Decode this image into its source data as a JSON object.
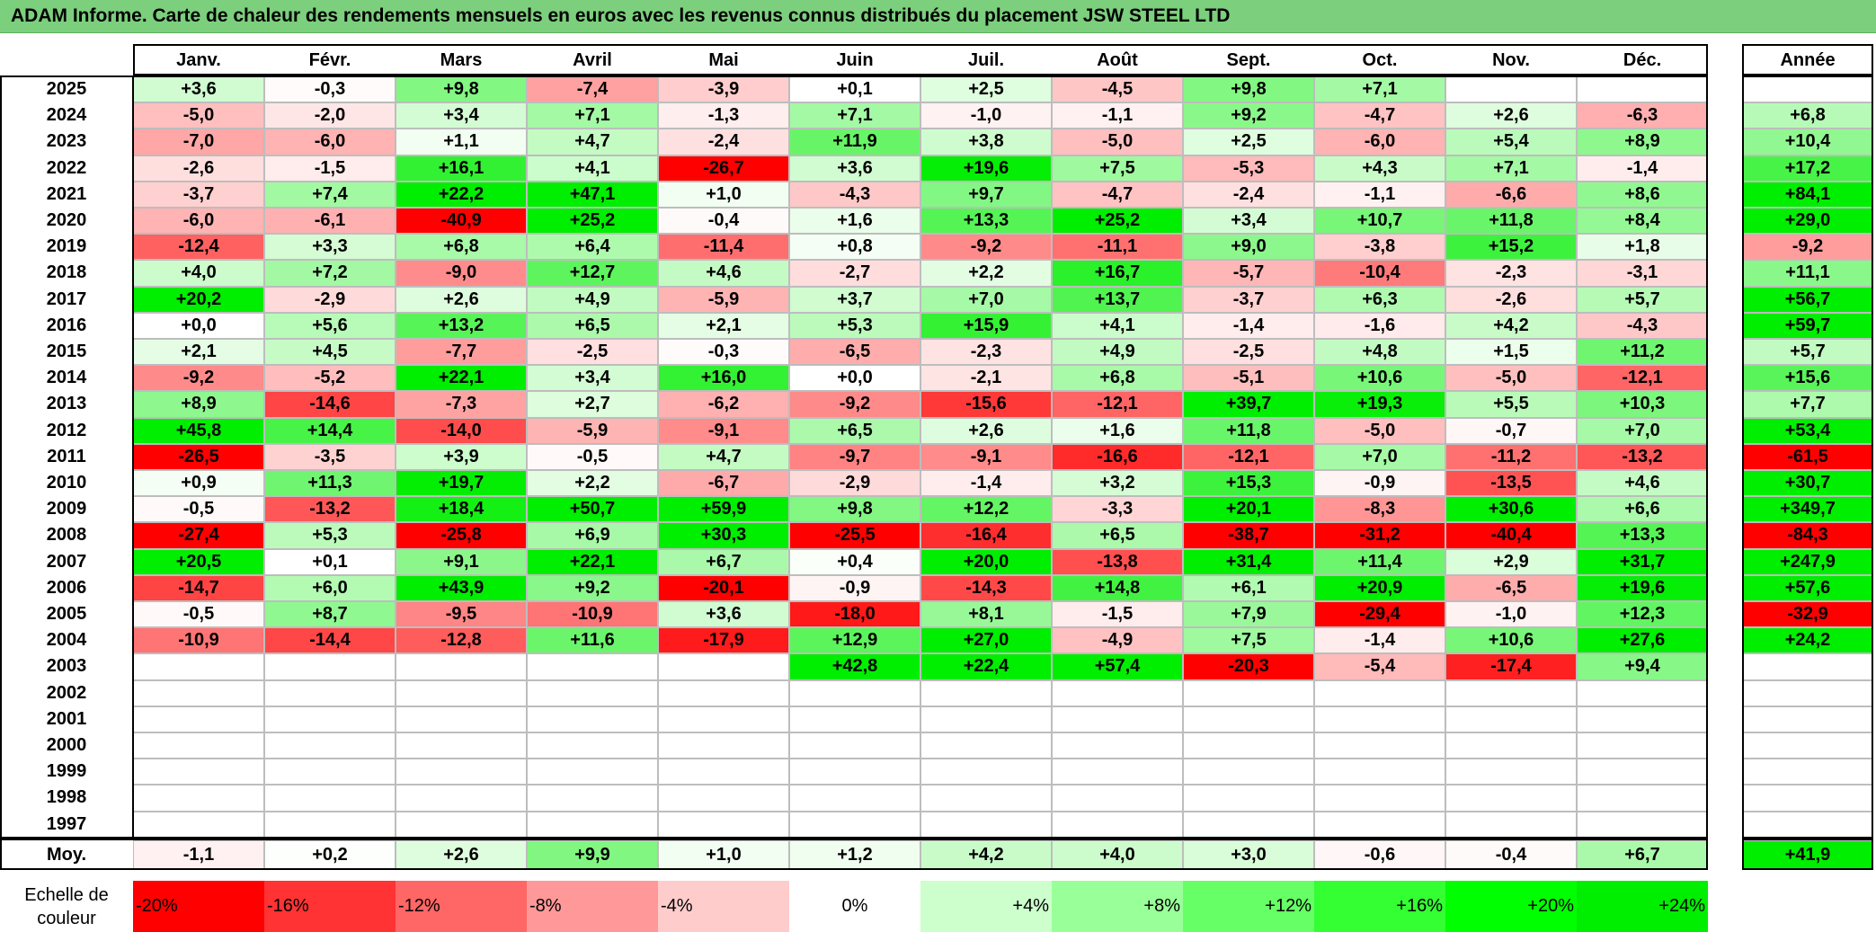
{
  "title": "ADAM Informe. Carte de chaleur des rendements mensuels en euros avec les revenus connus distribués du placement JSW STEEL LTD",
  "months": [
    "Janv.",
    "Févr.",
    "Mars",
    "Avril",
    "Mai",
    "Juin",
    "Juil.",
    "Août",
    "Sept.",
    "Oct.",
    "Nov.",
    "Déc."
  ],
  "year_header": "Année",
  "avg_label": "Moy.",
  "scale_label": "Echelle de couleur",
  "scale_steps": [
    {
      "label": "-20%",
      "value": -20,
      "color": "#ff0000",
      "align": "left"
    },
    {
      "label": "-16%",
      "value": -16,
      "color": "#ff3333",
      "align": "left"
    },
    {
      "label": "-12%",
      "value": -12,
      "color": "#ff6666",
      "align": "left"
    },
    {
      "label": "-8%",
      "value": -8,
      "color": "#ff9999",
      "align": "left"
    },
    {
      "label": "-4%",
      "value": -4,
      "color": "#ffcccc",
      "align": "left"
    },
    {
      "label": "0%",
      "value": 0,
      "color": "#ffffff",
      "align": "center"
    },
    {
      "label": "+4%",
      "value": 4,
      "color": "#ccffcc",
      "align": "right"
    },
    {
      "label": "+8%",
      "value": 8,
      "color": "#99ff99",
      "align": "right"
    },
    {
      "label": "+12%",
      "value": 12,
      "color": "#66ff66",
      "align": "right"
    },
    {
      "label": "+16%",
      "value": 16,
      "color": "#33ff33",
      "align": "right"
    },
    {
      "label": "+20%",
      "value": 20,
      "color": "#00ff00",
      "align": "right"
    },
    {
      "label": "+24%",
      "value": 24,
      "color": "#00ee00",
      "align": "right"
    }
  ],
  "chart_data": {
    "type": "heatmap",
    "title": "ADAM Informe. Carte de chaleur des rendements mensuels en euros avec les revenus connus distribués du placement JSW STEEL LTD",
    "x": [
      "Janv.",
      "Févr.",
      "Mars",
      "Avril",
      "Mai",
      "Juin",
      "Juil.",
      "Août",
      "Sept.",
      "Oct.",
      "Nov.",
      "Déc."
    ],
    "rows": [
      {
        "year": "2025",
        "values": [
          "+3,6",
          "-0,3",
          "+9,8",
          "-7,4",
          "-3,9",
          "+0,1",
          "+2,5",
          "-4,5",
          "+9,8",
          "+7,1",
          "",
          ""
        ],
        "annual": ""
      },
      {
        "year": "2024",
        "values": [
          "-5,0",
          "-2,0",
          "+3,4",
          "+7,1",
          "-1,3",
          "+7,1",
          "-1,0",
          "-1,1",
          "+9,2",
          "-4,7",
          "+2,6",
          "-6,3"
        ],
        "annual": "+6,8"
      },
      {
        "year": "2023",
        "values": [
          "-7,0",
          "-6,0",
          "+1,1",
          "+4,7",
          "-2,4",
          "+11,9",
          "+3,8",
          "-5,0",
          "+2,5",
          "-6,0",
          "+5,4",
          "+8,9"
        ],
        "annual": "+10,4"
      },
      {
        "year": "2022",
        "values": [
          "-2,6",
          "-1,5",
          "+16,1",
          "+4,1",
          "-26,7",
          "+3,6",
          "+19,6",
          "+7,5",
          "-5,3",
          "+4,3",
          "+7,1",
          "-1,4"
        ],
        "annual": "+17,2"
      },
      {
        "year": "2021",
        "values": [
          "-3,7",
          "+7,4",
          "+22,2",
          "+47,1",
          "+1,0",
          "-4,3",
          "+9,7",
          "-4,7",
          "-2,4",
          "-1,1",
          "-6,6",
          "+8,6"
        ],
        "annual": "+84,1"
      },
      {
        "year": "2020",
        "values": [
          "-6,0",
          "-6,1",
          "-40,9",
          "+25,2",
          "-0,4",
          "+1,6",
          "+13,3",
          "+25,2",
          "+3,4",
          "+10,7",
          "+11,8",
          "+8,4"
        ],
        "annual": "+29,0"
      },
      {
        "year": "2019",
        "values": [
          "-12,4",
          "+3,3",
          "+6,8",
          "+6,4",
          "-11,4",
          "+0,8",
          "-9,2",
          "-11,1",
          "+9,0",
          "-3,8",
          "+15,2",
          "+1,8"
        ],
        "annual": "-9,2"
      },
      {
        "year": "2018",
        "values": [
          "+4,0",
          "+7,2",
          "-9,0",
          "+12,7",
          "+4,6",
          "-2,7",
          "+2,2",
          "+16,7",
          "-5,7",
          "-10,4",
          "-2,3",
          "-3,1"
        ],
        "annual": "+11,1"
      },
      {
        "year": "2017",
        "values": [
          "+20,2",
          "-2,9",
          "+2,6",
          "+4,9",
          "-5,9",
          "+3,7",
          "+7,0",
          "+13,7",
          "-3,7",
          "+6,3",
          "-2,6",
          "+5,7"
        ],
        "annual": "+56,7"
      },
      {
        "year": "2016",
        "values": [
          "+0,0",
          "+5,6",
          "+13,2",
          "+6,5",
          "+2,1",
          "+5,3",
          "+15,9",
          "+4,1",
          "-1,4",
          "-1,6",
          "+4,2",
          "-4,3"
        ],
        "annual": "+59,7"
      },
      {
        "year": "2015",
        "values": [
          "+2,1",
          "+4,5",
          "-7,7",
          "-2,5",
          "-0,3",
          "-6,5",
          "-2,3",
          "+4,9",
          "-2,5",
          "+4,8",
          "+1,5",
          "+11,2"
        ],
        "annual": "+5,7"
      },
      {
        "year": "2014",
        "values": [
          "-9,2",
          "-5,2",
          "+22,1",
          "+3,4",
          "+16,0",
          "+0,0",
          "-2,1",
          "+6,8",
          "-5,1",
          "+10,6",
          "-5,0",
          "-12,1"
        ],
        "annual": "+15,6"
      },
      {
        "year": "2013",
        "values": [
          "+8,9",
          "-14,6",
          "-7,3",
          "+2,7",
          "-6,2",
          "-9,2",
          "-15,6",
          "-12,1",
          "+39,7",
          "+19,3",
          "+5,5",
          "+10,3"
        ],
        "annual": "+7,7"
      },
      {
        "year": "2012",
        "values": [
          "+45,8",
          "+14,4",
          "-14,0",
          "-5,9",
          "-9,1",
          "+6,5",
          "+2,6",
          "+1,6",
          "+11,8",
          "-5,0",
          "-0,7",
          "+7,0"
        ],
        "annual": "+53,4"
      },
      {
        "year": "2011",
        "values": [
          "-26,5",
          "-3,5",
          "+3,9",
          "-0,5",
          "+4,7",
          "-9,7",
          "-9,1",
          "-16,6",
          "-12,1",
          "+7,0",
          "-11,2",
          "-13,2"
        ],
        "annual": "-61,5"
      },
      {
        "year": "2010",
        "values": [
          "+0,9",
          "+11,3",
          "+19,7",
          "+2,2",
          "-6,7",
          "-2,9",
          "-1,4",
          "+3,2",
          "+15,3",
          "-0,9",
          "-13,5",
          "+4,6"
        ],
        "annual": "+30,7"
      },
      {
        "year": "2009",
        "values": [
          "-0,5",
          "-13,2",
          "+18,4",
          "+50,7",
          "+59,9",
          "+9,8",
          "+12,2",
          "-3,3",
          "+20,1",
          "-8,3",
          "+30,6",
          "+6,6"
        ],
        "annual": "+349,7"
      },
      {
        "year": "2008",
        "values": [
          "-27,4",
          "+5,3",
          "-25,8",
          "+6,9",
          "+30,3",
          "-25,5",
          "-16,4",
          "+6,5",
          "-38,7",
          "-31,2",
          "-40,4",
          "+13,3"
        ],
        "annual": "-84,3"
      },
      {
        "year": "2007",
        "values": [
          "+20,5",
          "+0,1",
          "+9,1",
          "+22,1",
          "+6,7",
          "+0,4",
          "+20,0",
          "-13,8",
          "+31,4",
          "+11,4",
          "+2,9",
          "+31,7"
        ],
        "annual": "+247,9"
      },
      {
        "year": "2006",
        "values": [
          "-14,7",
          "+6,0",
          "+43,9",
          "+9,2",
          "-20,1",
          "-0,9",
          "-14,3",
          "+14,8",
          "+6,1",
          "+20,9",
          "-6,5",
          "+19,6"
        ],
        "annual": "+57,6"
      },
      {
        "year": "2005",
        "values": [
          "-0,5",
          "+8,7",
          "-9,5",
          "-10,9",
          "+3,6",
          "-18,0",
          "+8,1",
          "-1,5",
          "+7,9",
          "-29,4",
          "-1,0",
          "+12,3"
        ],
        "annual": "-32,9"
      },
      {
        "year": "2004",
        "values": [
          "-10,9",
          "-14,4",
          "-12,8",
          "+11,6",
          "-17,9",
          "+12,9",
          "+27,0",
          "-4,9",
          "+7,5",
          "-1,4",
          "+10,6",
          "+27,6"
        ],
        "annual": "+24,2"
      },
      {
        "year": "2003",
        "values": [
          "",
          "",
          "",
          "",
          "",
          "+42,8",
          "+22,4",
          "+57,4",
          "-20,3",
          "-5,4",
          "-17,4",
          "+9,4"
        ],
        "annual": ""
      },
      {
        "year": "2002",
        "values": [
          "",
          "",
          "",
          "",
          "",
          "",
          "",
          "",
          "",
          "",
          "",
          ""
        ],
        "annual": ""
      },
      {
        "year": "2001",
        "values": [
          "",
          "",
          "",
          "",
          "",
          "",
          "",
          "",
          "",
          "",
          "",
          ""
        ],
        "annual": ""
      },
      {
        "year": "2000",
        "values": [
          "",
          "",
          "",
          "",
          "",
          "",
          "",
          "",
          "",
          "",
          "",
          ""
        ],
        "annual": ""
      },
      {
        "year": "1999",
        "values": [
          "",
          "",
          "",
          "",
          "",
          "",
          "",
          "",
          "",
          "",
          "",
          ""
        ],
        "annual": ""
      },
      {
        "year": "1998",
        "values": [
          "",
          "",
          "",
          "",
          "",
          "",
          "",
          "",
          "",
          "",
          "",
          ""
        ],
        "annual": ""
      },
      {
        "year": "1997",
        "values": [
          "",
          "",
          "",
          "",
          "",
          "",
          "",
          "",
          "",
          "",
          "",
          ""
        ],
        "annual": ""
      }
    ],
    "averages": [
      "-1,1",
      "+0,2",
      "+2,6",
      "+9,9",
      "+1,0",
      "+1,2",
      "+4,2",
      "+4,0",
      "+3,0",
      "-0,6",
      "-0,4",
      "+6,7"
    ],
    "average_annual": "+41,9"
  }
}
